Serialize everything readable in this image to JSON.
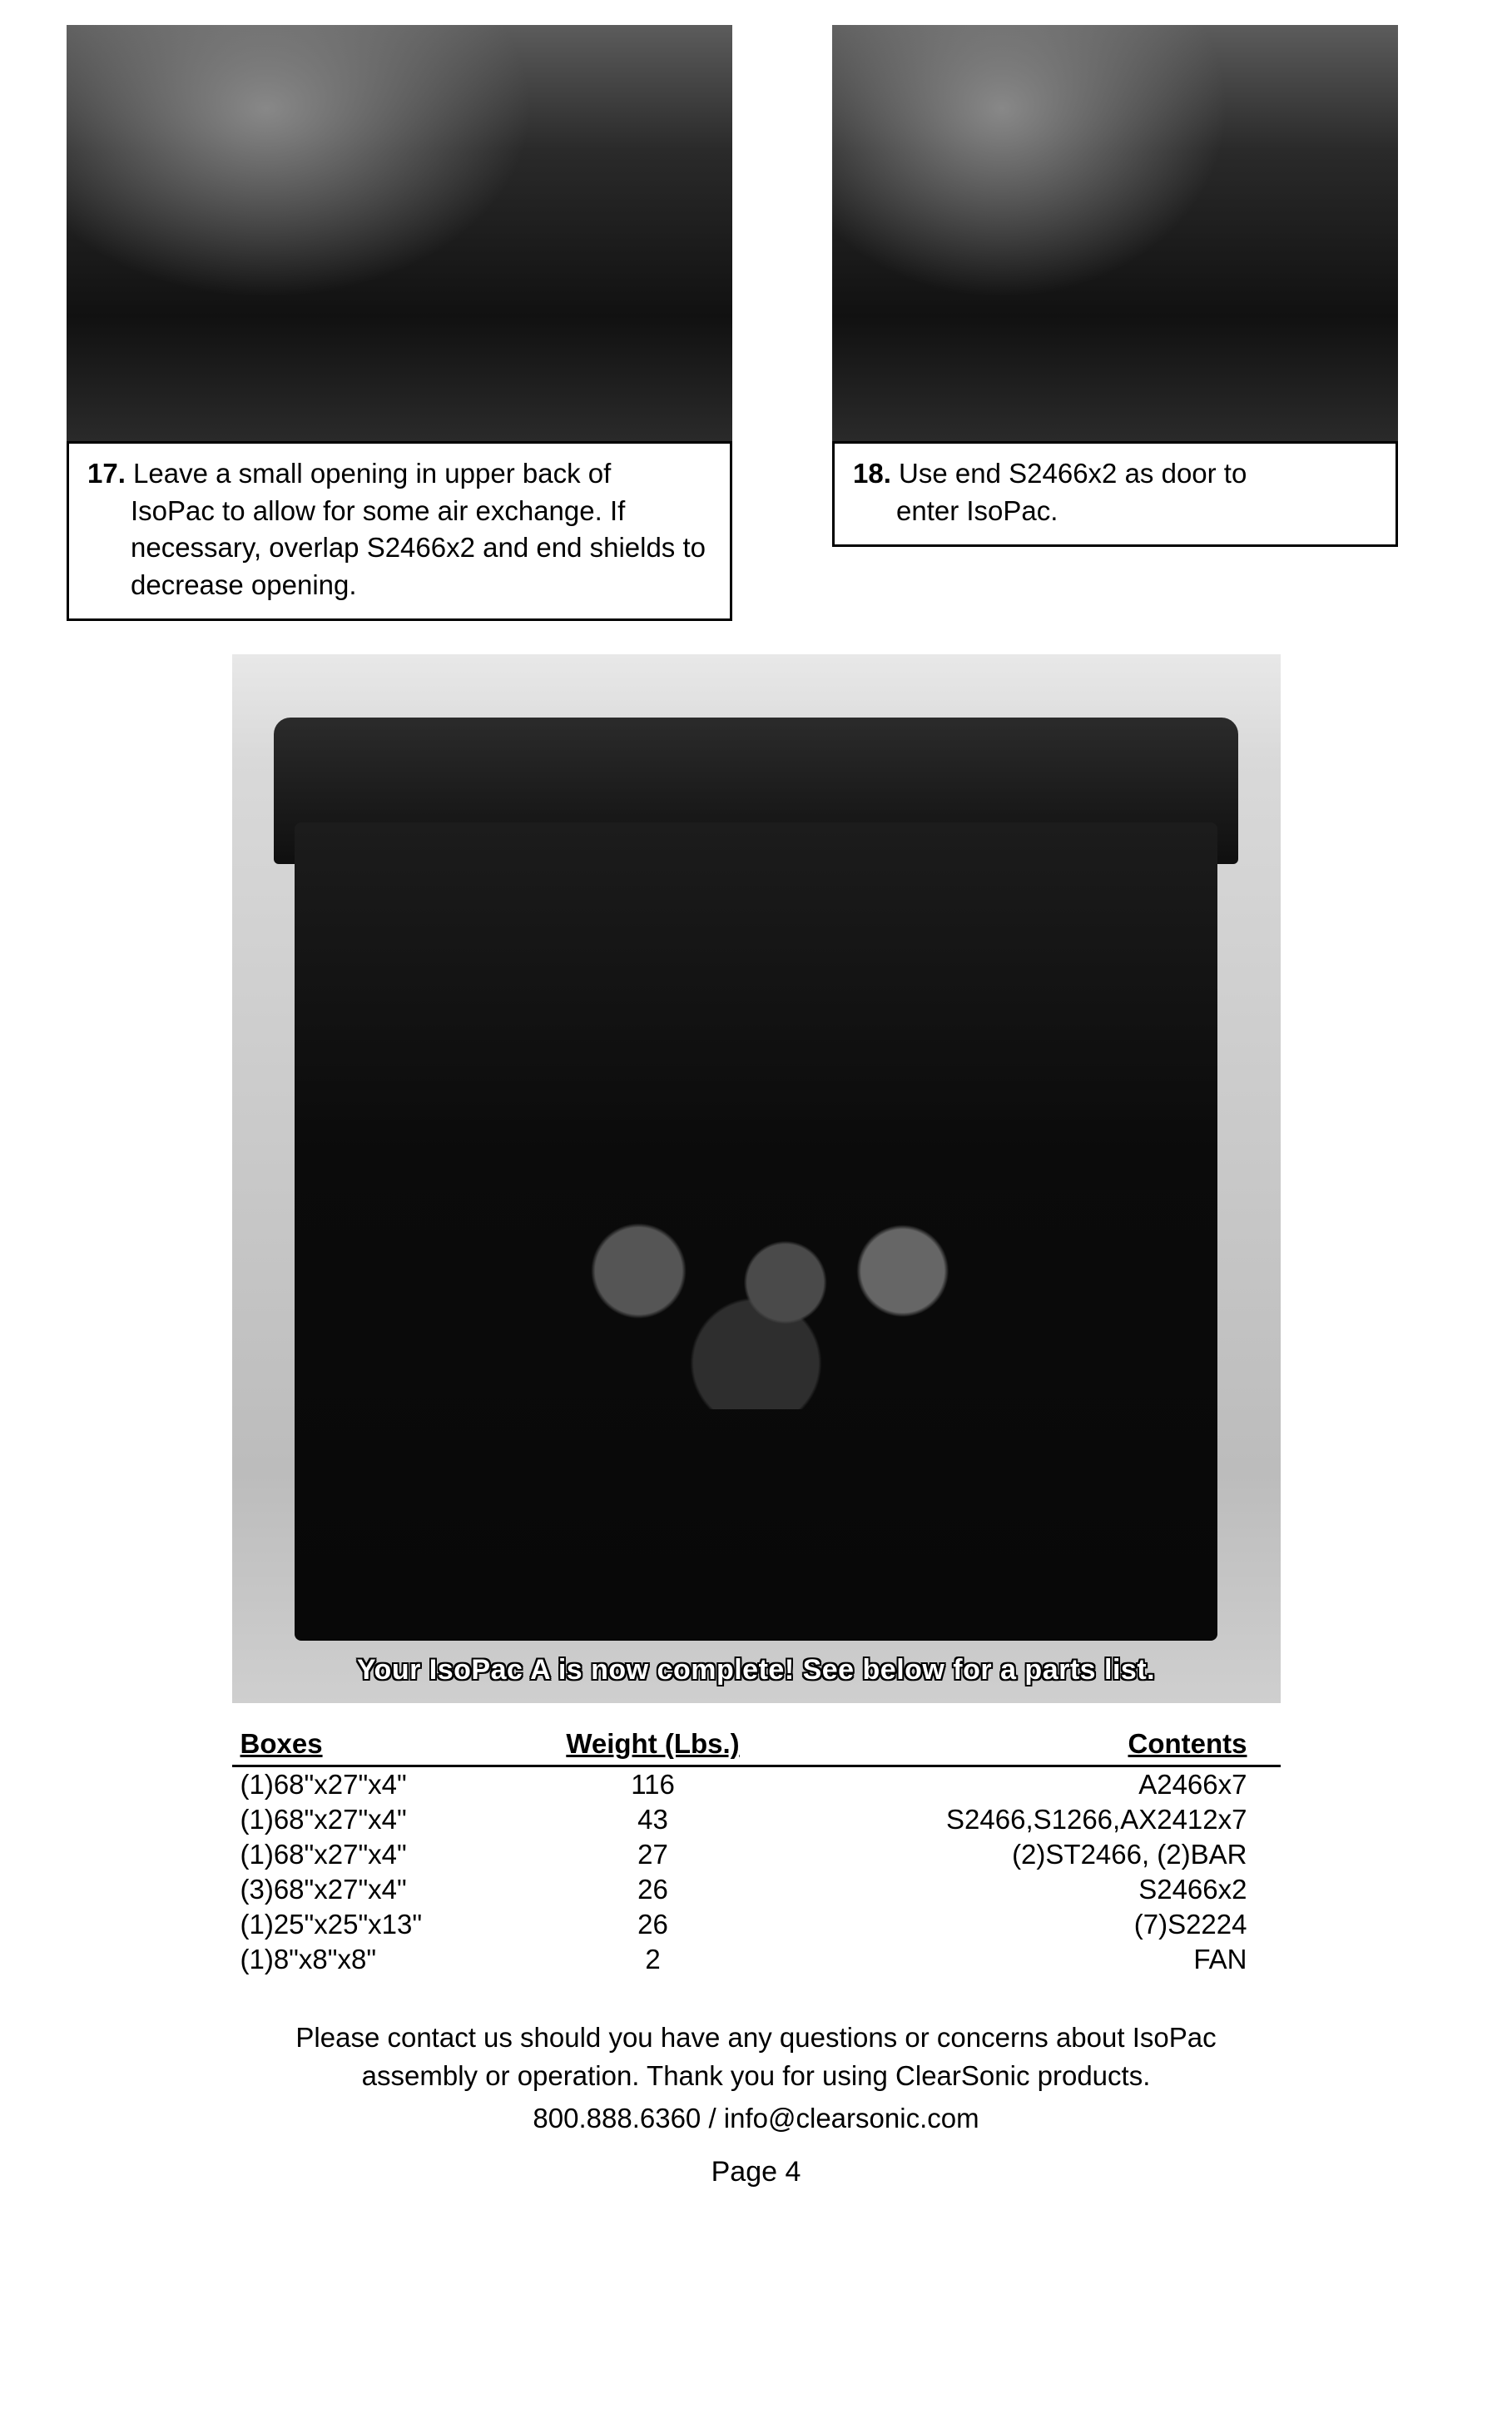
{
  "steps": {
    "s17": {
      "num": "17.",
      "line1": "Leave a small opening in upper back of",
      "rest": "IsoPac to allow for some air exchange. If necessary, overlap S2466x2 and end shields to decrease opening."
    },
    "s18": {
      "num": "18.",
      "line1": "Use end S2466x2 as door to",
      "rest": "enter IsoPac."
    }
  },
  "hero_caption": "Your IsoPac A is now complete!  See below for a parts list.",
  "table": {
    "headers": {
      "boxes": "Boxes",
      "weight": "Weight (Lbs.)",
      "contents": "Contents"
    },
    "rows": [
      {
        "boxes": "(1)68\"x27\"x4\"",
        "weight": "116",
        "contents": "A2466x7"
      },
      {
        "boxes": "(1)68\"x27\"x4\"",
        "weight": "43",
        "contents": "S2466,S1266,AX2412x7"
      },
      {
        "boxes": "(1)68\"x27\"x4\"",
        "weight": "27",
        "contents": "(2)ST2466, (2)BAR"
      },
      {
        "boxes": "(3)68\"x27\"x4\"",
        "weight": "26",
        "contents": "S2466x2"
      },
      {
        "boxes": "(1)25\"x25\"x13\"",
        "weight": "26",
        "contents": "(7)S2224"
      },
      {
        "boxes": "(1)8\"x8\"x8\"",
        "weight": "2",
        "contents": "FAN"
      }
    ]
  },
  "footer": {
    "line1": "Please contact us should you have any questions or concerns about IsoPac",
    "line2": "assembly or operation.  Thank you for using ClearSonic products.",
    "contact": "800.888.6360 / info@clearsonic.com",
    "page": "Page 4"
  }
}
